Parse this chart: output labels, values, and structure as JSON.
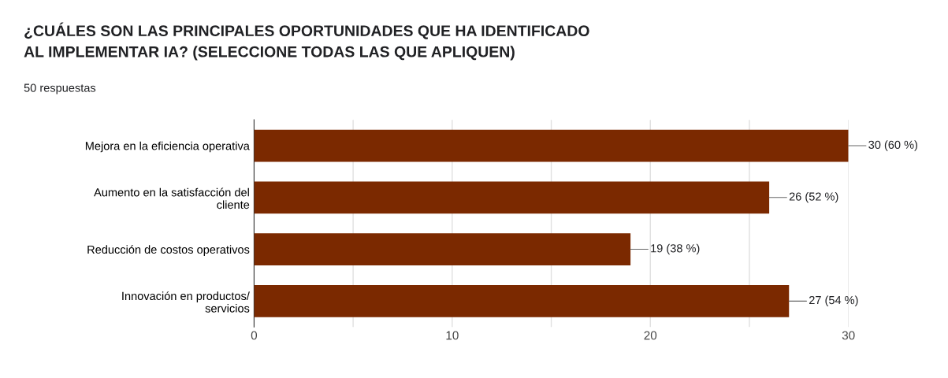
{
  "chart_data": {
    "type": "bar",
    "orientation": "horizontal",
    "title": "¿CUÁLES SON LAS PRINCIPALES OPORTUNIDADES QUE HA IDENTIFICADO\nAL IMPLEMENTAR IA? (SELECCIONE TODAS LAS QUE APLIQUEN)",
    "subtitle": "50 respuestas",
    "categories": [
      "Mejora en la eficiencia operativa",
      "Aumento en la satisfacción del\ncliente",
      "Reducción de costos operativos",
      "Innovación en productos/\nservicios"
    ],
    "values": [
      30,
      26,
      19,
      27
    ],
    "value_labels": [
      "30 (60 %)",
      "26 (52 %)",
      "19 (38 %)",
      "27 (54 %)"
    ],
    "color": "#7b2900",
    "xlim": [
      0,
      30
    ],
    "xticks": [
      0,
      {
        "value": 5,
        "label": null
      },
      10,
      {
        "value": 15,
        "label": null
      },
      20,
      {
        "value": 25,
        "label": null
      },
      30
    ],
    "grid": "x",
    "legend": false
  }
}
